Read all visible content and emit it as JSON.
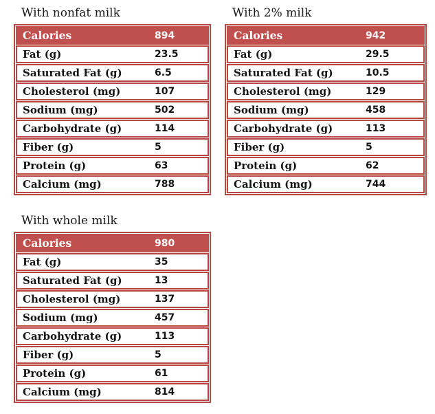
{
  "colors": {
    "header_bg": "#c0504d",
    "border": "#b84743",
    "header_text": "#ffffff",
    "body_text": "#141414"
  },
  "chart_data": [
    {
      "type": "table",
      "title": "With nonfat milk",
      "columns": [
        "metric",
        "value"
      ],
      "header_row": [
        "Calories",
        "894"
      ],
      "rows": [
        [
          "Fat (g)",
          "23.5"
        ],
        [
          "Saturated Fat (g)",
          "6.5"
        ],
        [
          "Cholesterol (mg)",
          "107"
        ],
        [
          "Sodium (mg)",
          "502"
        ],
        [
          "Carbohydrate (g)",
          "114"
        ],
        [
          "Fiber (g)",
          "5"
        ],
        [
          "Protein (g)",
          "63"
        ],
        [
          "Calcium (mg)",
          "788"
        ]
      ]
    },
    {
      "type": "table",
      "title": "With 2% milk",
      "columns": [
        "metric",
        "value"
      ],
      "header_row": [
        "Calories",
        "942"
      ],
      "rows": [
        [
          "Fat (g)",
          "29.5"
        ],
        [
          "Saturated Fat (g)",
          "10.5"
        ],
        [
          "Cholesterol (mg)",
          "129"
        ],
        [
          "Sodium (mg)",
          "458"
        ],
        [
          "Carbohydrate (g)",
          "113"
        ],
        [
          "Fiber (g)",
          "5"
        ],
        [
          "Protein (g)",
          "62"
        ],
        [
          "Calcium (mg)",
          "744"
        ]
      ]
    },
    {
      "type": "table",
      "title": "With whole milk",
      "columns": [
        "metric",
        "value"
      ],
      "header_row": [
        "Calories",
        "980"
      ],
      "rows": [
        [
          "Fat (g)",
          "35"
        ],
        [
          "Saturated Fat (g)",
          "13"
        ],
        [
          "Cholesterol (mg)",
          "137"
        ],
        [
          "Sodium (mg)",
          "457"
        ],
        [
          "Carbohydrate (g)",
          "113"
        ],
        [
          "Fiber (g)",
          "5"
        ],
        [
          "Protein (g)",
          "61"
        ],
        [
          "Calcium (mg)",
          "814"
        ]
      ]
    }
  ]
}
